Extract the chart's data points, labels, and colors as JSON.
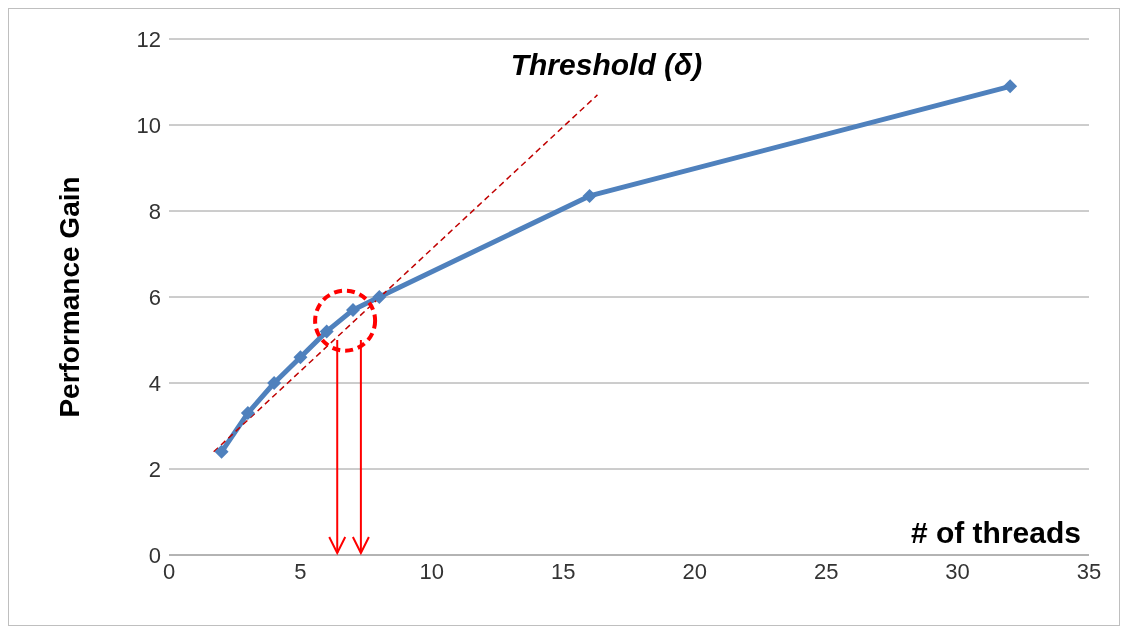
{
  "chart_data": {
    "type": "line",
    "xlabel": "# of threads",
    "ylabel": "Performance Gain",
    "annotations": [
      "Threshold (δ)"
    ],
    "xlim": [
      0,
      35
    ],
    "xticks": [
      0,
      5,
      10,
      15,
      20,
      25,
      30,
      35
    ],
    "ylim": [
      0,
      12
    ],
    "yticks": [
      0,
      2,
      4,
      6,
      8,
      10,
      12
    ],
    "grid": "y",
    "marker": "diamond",
    "series": [
      {
        "color": "#4f81bd",
        "x": [
          2,
          3,
          4,
          5,
          6,
          7,
          8,
          16,
          32
        ],
        "values": [
          2.4,
          3.3,
          4.0,
          4.6,
          5.2,
          5.7,
          6.0,
          8.35,
          10.9
        ]
      },
      {
        "type": "line",
        "color": "#c00000",
        "line_style": "dashed",
        "marker": "none",
        "x": [
          1.7,
          16.3
        ],
        "values": [
          2.4,
          10.7
        ]
      }
    ]
  }
}
